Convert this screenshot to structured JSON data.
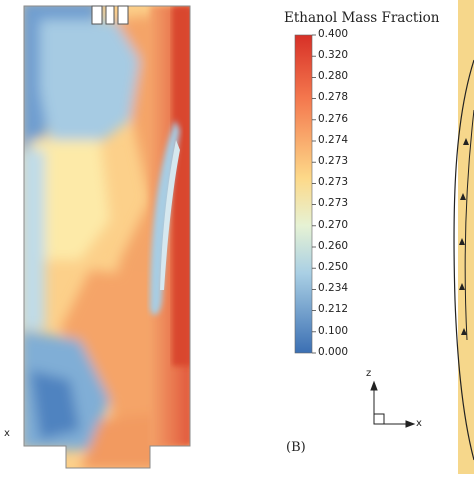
{
  "legend": {
    "title": "Ethanol Mass Fraction",
    "ticks": [
      "0.400",
      "0.320",
      "0.280",
      "0.278",
      "0.276",
      "0.274",
      "0.273",
      "0.273",
      "0.273",
      "0.270",
      "0.260",
      "0.250",
      "0.234",
      "0.212",
      "0.100",
      "0.000"
    ]
  },
  "panel_b_label": "(B)",
  "axes": {
    "z": "z",
    "x": "x"
  },
  "left_axis_label": "x",
  "colors": {
    "red": "#d73027",
    "orange": "#f08a4b",
    "yellow": "#fee08b",
    "light_blue": "#abd9e9",
    "blue": "#3a78b8",
    "panel_c_background": "#f7d98c"
  }
}
